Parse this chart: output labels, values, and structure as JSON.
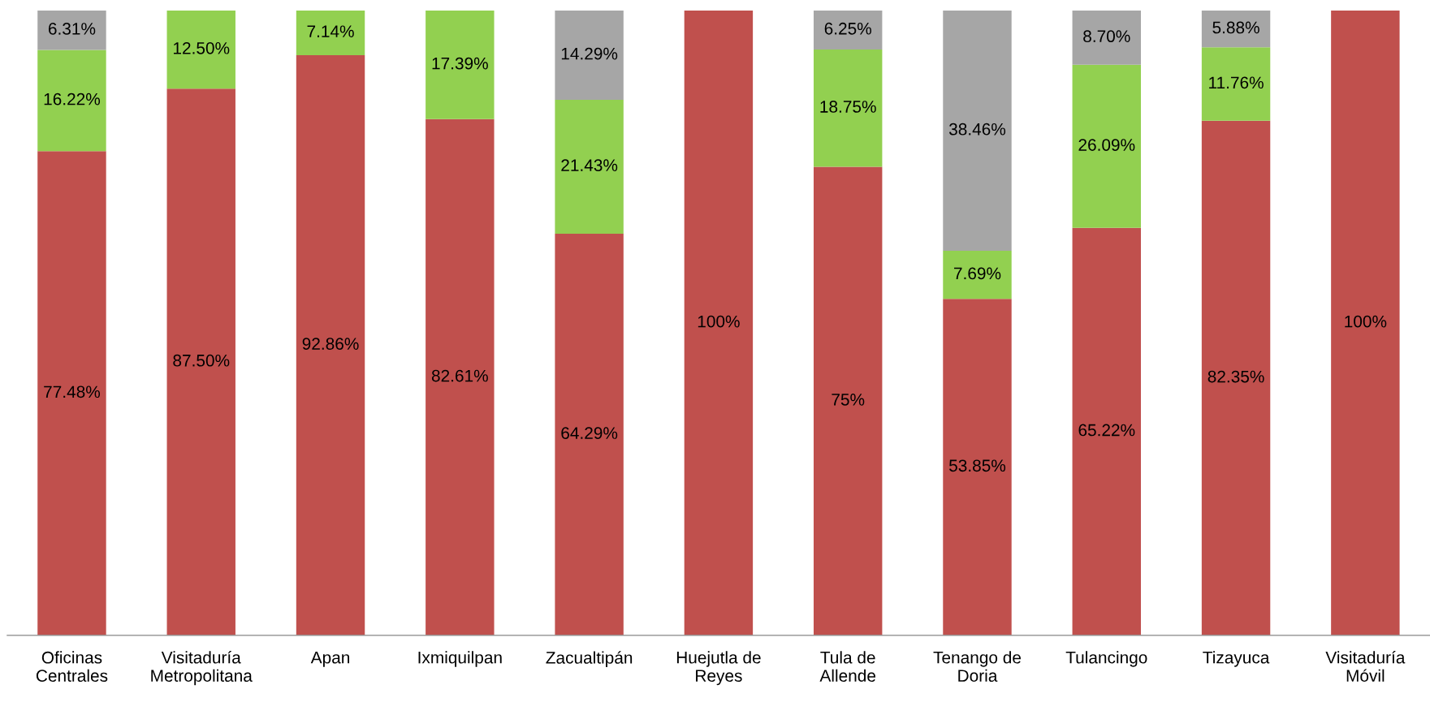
{
  "chart_data": {
    "type": "bar",
    "stacked": true,
    "categories": [
      "Oficinas\nCentrales",
      "Visitaduría\nMetropolitana",
      "Apan",
      "Ixmiquilpan",
      "Zacualtipán",
      "Huejutla de\nReyes",
      "Tula de\nAllende",
      "Tenango de\nDoria",
      "Tulancingo",
      "Tizayuca",
      "Visitaduría\nMóvil"
    ],
    "ylim": [
      0,
      100
    ],
    "tick_labels": "x",
    "grid": false,
    "series": [
      {
        "color": "#c0504d",
        "values": [
          77.48,
          87.5,
          92.86,
          82.61,
          64.29,
          100,
          75,
          53.85,
          65.22,
          82.35,
          100
        ],
        "value_labels": [
          "77.48%",
          "87.50%",
          "92.86%",
          "82.61%",
          "64.29%",
          "100%",
          "75%",
          "53.85%",
          "65.22%",
          "82.35%",
          "100%"
        ]
      },
      {
        "color": "#92d050",
        "values": [
          16.22,
          12.5,
          7.14,
          17.39,
          21.43,
          null,
          18.75,
          7.69,
          26.09,
          11.76,
          null
        ],
        "value_labels": [
          "16.22%",
          "12.50%",
          "7.14%",
          "17.39%",
          "21.43%",
          null,
          "18.75%",
          "7.69%",
          "26.09%",
          "11.76%",
          null
        ]
      },
      {
        "color": "#a6a6a6",
        "values": [
          6.31,
          null,
          null,
          null,
          14.29,
          null,
          6.25,
          38.46,
          8.7,
          5.88,
          null
        ],
        "value_labels": [
          "6.31%",
          null,
          null,
          null,
          "14.29%",
          null,
          "6.25%",
          "38.46%",
          "8.70%",
          "5.88%",
          null
        ]
      }
    ]
  }
}
